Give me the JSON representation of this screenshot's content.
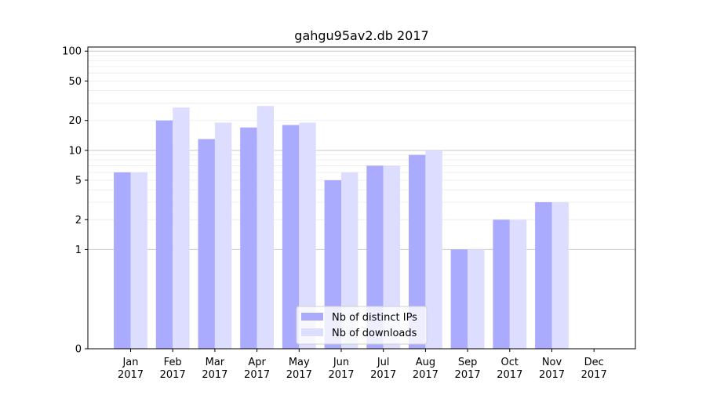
{
  "chart_data": {
    "type": "bar",
    "title": "gahgu95av2.db 2017",
    "xlabel": "",
    "ylabel": "",
    "yscale": "symlog",
    "ylim": [
      0,
      110
    ],
    "yticks": [
      0,
      1,
      2,
      5,
      10,
      20,
      50,
      100
    ],
    "categories": [
      [
        "Jan",
        "2017"
      ],
      [
        "Feb",
        "2017"
      ],
      [
        "Mar",
        "2017"
      ],
      [
        "Apr",
        "2017"
      ],
      [
        "May",
        "2017"
      ],
      [
        "Jun",
        "2017"
      ],
      [
        "Jul",
        "2017"
      ],
      [
        "Aug",
        "2017"
      ],
      [
        "Sep",
        "2017"
      ],
      [
        "Oct",
        "2017"
      ],
      [
        "Nov",
        "2017"
      ],
      [
        "Dec",
        "2017"
      ]
    ],
    "series": [
      {
        "name": "Nb of distinct IPs",
        "color": "#aaaaff",
        "values": [
          6,
          20,
          13,
          17,
          18,
          5,
          7,
          9,
          1,
          2,
          3,
          0
        ]
      },
      {
        "name": "Nb of downloads",
        "color": "#ddddff",
        "values": [
          6,
          27,
          19,
          28,
          19,
          6,
          7,
          10,
          1,
          2,
          3,
          0
        ]
      }
    ],
    "grid": true,
    "legend": "bottom-center"
  }
}
